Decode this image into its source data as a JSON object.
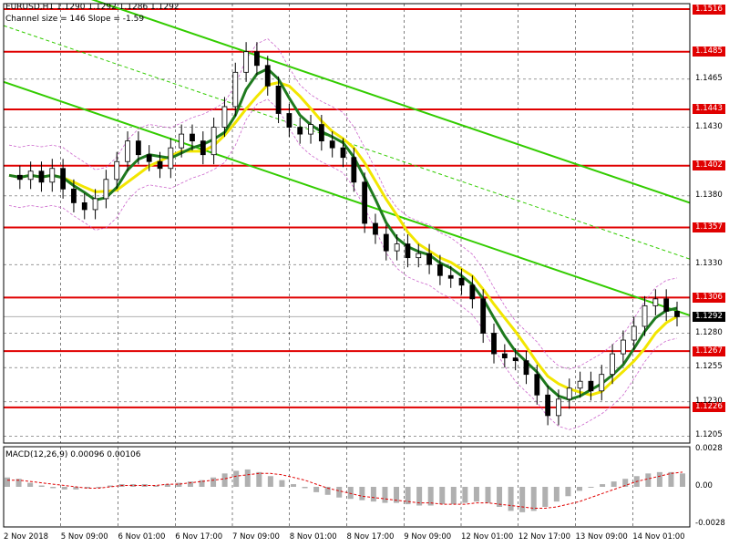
{
  "chart_data": {
    "type": "candlestick",
    "symbol_line": "EURUSD,H1  1.1290 1.1292 1.1286 1.1292",
    "channel_info": "Channel size = 146 Slope = -1.59",
    "price_axis": {
      "ticks": [
        "1.1516",
        "1.1485",
        "1.1465",
        "1.1443",
        "1.1430",
        "1.1402",
        "1.1380",
        "1.1357",
        "1.1330",
        "1.1306",
        "1.1280",
        "1.1267",
        "1.1255",
        "1.1230",
        "1.1226",
        "1.1205"
      ],
      "ylim": [
        1.12,
        1.152
      ]
    },
    "levels": [
      1.1516,
      1.1485,
      1.1443,
      1.1402,
      1.1357,
      1.1306,
      1.1267,
      1.1226
    ],
    "current_price": "1.1292",
    "time_axis": [
      "2 Nov 2018",
      "5 Nov 09:00",
      "6 Nov 01:00",
      "6 Nov 17:00",
      "7 Nov 09:00",
      "8 Nov 01:00",
      "8 Nov 17:00",
      "9 Nov 09:00",
      "12 Nov 01:00",
      "12 Nov 17:00",
      "13 Nov 09:00",
      "14 Nov 01:00"
    ],
    "close_path": [
      1.1395,
      1.1392,
      1.1398,
      1.139,
      1.14,
      1.1385,
      1.1375,
      1.137,
      1.1378,
      1.1392,
      1.1405,
      1.142,
      1.141,
      1.1405,
      1.14,
      1.1415,
      1.1425,
      1.142,
      1.141,
      1.143,
      1.1445,
      1.147,
      1.1485,
      1.1475,
      1.146,
      1.144,
      1.143,
      1.1425,
      1.1432,
      1.142,
      1.1415,
      1.1408,
      1.139,
      1.136,
      1.1352,
      1.134,
      1.1345,
      1.1335,
      1.1338,
      1.133,
      1.1322,
      1.132,
      1.1315,
      1.1305,
      1.128,
      1.1265,
      1.1262,
      1.126,
      1.125,
      1.1235,
      1.122,
      1.1232,
      1.124,
      1.1245,
      1.1238,
      1.125,
      1.1265,
      1.1275,
      1.1285,
      1.13,
      1.1305,
      1.1296,
      1.1292
    ],
    "indicator": {
      "name": "MACD(12,26,9) 0.00096 0.00106",
      "axis_ticks": [
        "0.0028",
        "0.00",
        "-0.0028"
      ],
      "ylim": [
        -0.003,
        0.003
      ],
      "histogram": [
        0.0007,
        0.0006,
        0.0003,
        0.0001,
        -0.0001,
        -0.0002,
        -0.0002,
        -0.0001,
        0.0,
        0.0001,
        0.0002,
        0.0002,
        0.0002,
        0.0001,
        0.0002,
        0.0003,
        0.0004,
        0.0005,
        0.0007,
        0.001,
        0.0012,
        0.0013,
        0.0011,
        0.0008,
        0.0005,
        0.0002,
        -0.0001,
        -0.0004,
        -0.0006,
        -0.0008,
        -0.0009,
        -0.001,
        -0.0011,
        -0.0012,
        -0.0012,
        -0.0013,
        -0.0014,
        -0.0014,
        -0.0013,
        -0.0013,
        -0.0012,
        -0.0011,
        -0.0012,
        -0.0015,
        -0.0018,
        -0.0019,
        -0.0018,
        -0.0015,
        -0.0011,
        -0.0007,
        -0.0003,
        0.0,
        0.0002,
        0.0004,
        0.0006,
        0.0008,
        0.001,
        0.0011,
        0.0011,
        0.001
      ],
      "signal": [
        0.0005,
        0.0005,
        0.0004,
        0.0003,
        0.0002,
        0.0001,
        0.0,
        -0.0001,
        -0.0001,
        0.0,
        0.0001,
        0.0001,
        0.0001,
        0.0001,
        0.0002,
        0.0002,
        0.0003,
        0.0004,
        0.0005,
        0.0006,
        0.0008,
        0.0009,
        0.001,
        0.001,
        0.0009,
        0.0007,
        0.0005,
        0.0002,
        -0.0001,
        -0.0003,
        -0.0005,
        -0.0007,
        -0.0008,
        -0.0009,
        -0.001,
        -0.0011,
        -0.0012,
        -0.0012,
        -0.0013,
        -0.0013,
        -0.0013,
        -0.0012,
        -0.0012,
        -0.0013,
        -0.0014,
        -0.0015,
        -0.0016,
        -0.0016,
        -0.0015,
        -0.0013,
        -0.0011,
        -0.0008,
        -0.0005,
        -0.0002,
        0.0001,
        0.0004,
        0.0006,
        0.0008,
        0.001,
        0.0011
      ]
    },
    "colors": {
      "level_lines": "#e00000",
      "trend_channel": "#33cc00",
      "ma_fast": "#f2e600",
      "ma_slow": "#1e7a1e",
      "envelope": "#cc66cc",
      "candles": "#000000",
      "macd_hist": "#b0b0b0",
      "macd_signal": "#e00000"
    },
    "grid": true
  }
}
